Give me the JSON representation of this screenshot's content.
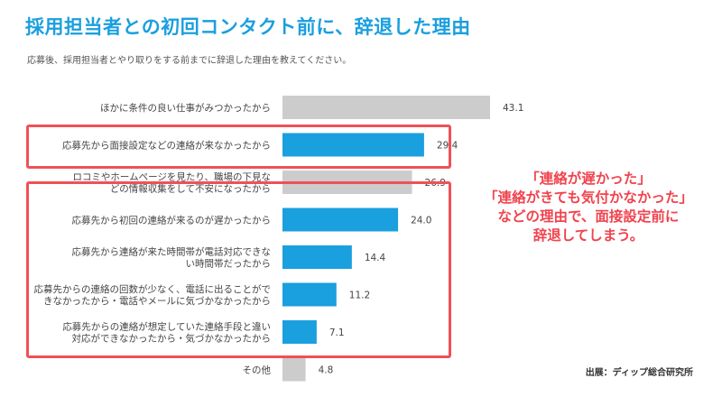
{
  "title": "採用担当者との初回コンタクト前に、辞退した理由",
  "subtitle": "応募後、採用担当者とやり取りをする前までに辞退した理由を教えてください。",
  "callout": [
    "「連絡が遅かった」",
    "「連絡がきても気付かなかった」",
    "などの理由で、面接設定前に",
    "辞退してしまう。"
  ],
  "source": "出展：ディップ総合研究所",
  "colors": {
    "title": "#1a9fdf",
    "highlight_bar": "#1a9fdf",
    "normal_bar": "#cccccc",
    "callout": "#f0434e",
    "box_border": "#f05058"
  },
  "chart_data": {
    "type": "bar",
    "orientation": "horizontal",
    "categories": [
      [
        "ほかに条件の良い仕事がみつかったから"
      ],
      [
        "応募先から面接設定などの連絡が来なかったから"
      ],
      [
        "ロコミやホームページを見たり、職場の下見な",
        "どの情報収集をして不安になったから"
      ],
      [
        "応募先から初回の連絡が来るのが遅かったから"
      ],
      [
        "応募先から連絡が来た時間帯が電話対応できな",
        "い時間帯だったから"
      ],
      [
        "応募先からの連絡の回数が少なく、電話に出ることがで",
        "きなかったから・電話やメールに気づかなかったから"
      ],
      [
        "応募先からの連絡が想定していた連絡手段と違い",
        "対応ができなかったから・気づかなかったから"
      ],
      [
        "その他"
      ]
    ],
    "values": [
      43.1,
      29.4,
      26.9,
      24.0,
      14.4,
      11.2,
      7.1,
      4.8
    ],
    "value_labels": [
      "43.1",
      "29.4",
      "26.9",
      "24.0",
      "14.4",
      "11.2",
      "7.1",
      "4.8"
    ],
    "highlighted": [
      false,
      true,
      false,
      true,
      true,
      true,
      true,
      false
    ],
    "xlim": [
      0,
      50
    ],
    "grid": false,
    "legend": "none"
  }
}
